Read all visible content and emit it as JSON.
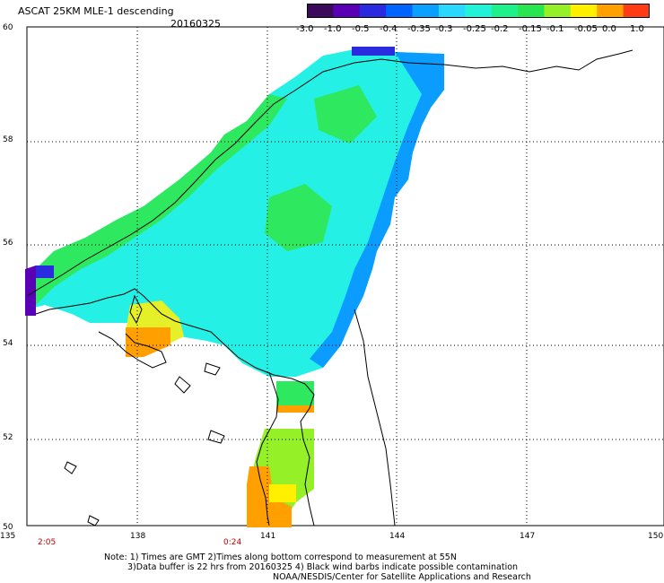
{
  "header": {
    "title": "ASCAT 25KM MLE-1 descending",
    "date": "20160325"
  },
  "colorbar": {
    "labels": [
      "-3.0",
      "-1.0",
      "-0.5",
      "-0.4",
      "-0.35",
      "-0.3",
      "-0.25",
      "-0.2",
      "-0.15",
      "-0.1",
      "-0.05",
      "0.0",
      "1.0"
    ],
    "colors": [
      "#3b0a5a",
      "#5a00b4",
      "#2a2adf",
      "#0064ff",
      "#0aa0ff",
      "#2ad8ff",
      "#22f2d8",
      "#1ef08c",
      "#28e650",
      "#96f028",
      "#fff000",
      "#ffa000",
      "#ff3c14"
    ]
  },
  "axes": {
    "lat_labels": [
      "60",
      "58",
      "56",
      "54",
      "52",
      "50"
    ],
    "lon_labels": [
      "135",
      "138",
      "141",
      "144",
      "147",
      "150"
    ]
  },
  "times": [
    "2:05",
    "0:24"
  ],
  "notes": {
    "line1": "Note: 1) Times are GMT 2)Times along bottom correspond to measurement at 55N",
    "line2": "3)Data buffer is 22 hrs from 20160325 4) Black wind barbs indicate possible contamination",
    "line3": "NOAA/NESDIS/Center for Satellite Applications and Research"
  }
}
